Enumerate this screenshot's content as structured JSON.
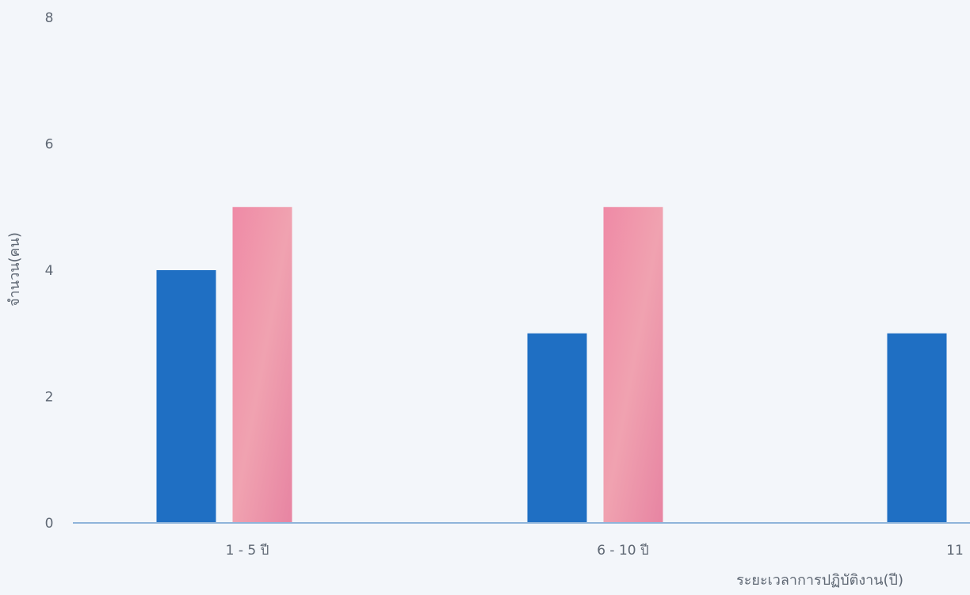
{
  "chart_data": {
    "type": "bar",
    "title": "",
    "xlabel": "ระยะเวลาการปฏิบัติงาน(ปี)",
    "ylabel": "จำนวน(คน)",
    "ylim": [
      0,
      8
    ],
    "yticks": [
      "0",
      "2",
      "4",
      "6",
      "8"
    ],
    "categories": [
      "1 - 5 ปี",
      "6 - 10 ปี",
      "11"
    ],
    "series": [
      {
        "values": [
          4,
          3,
          3
        ]
      },
      {
        "values": [
          5,
          5,
          null
        ]
      }
    ],
    "colors": [
      "#1f6fc3",
      "#ec8fa8"
    ],
    "grid": false,
    "legend": "none"
  }
}
